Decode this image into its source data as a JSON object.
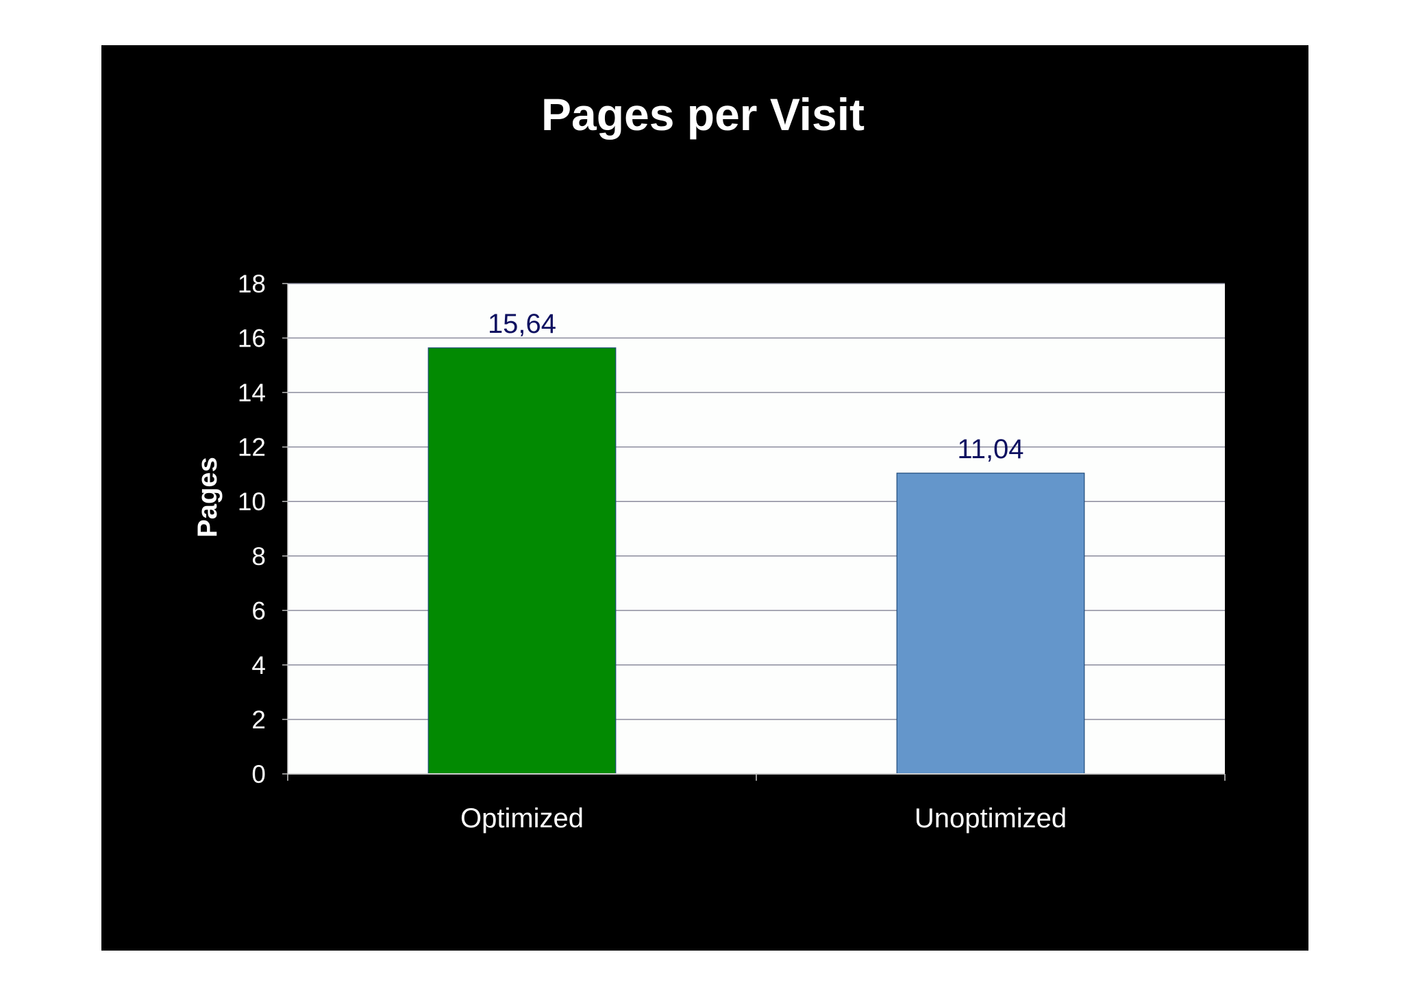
{
  "chart_data": {
    "type": "bar",
    "title": "Pages per Visit",
    "ylabel": "Pages",
    "xlabel": "",
    "categories": [
      "Optimized",
      "Unoptimized"
    ],
    "values": [
      15.64,
      11.04
    ],
    "data_labels": [
      "15,64",
      "11,04"
    ],
    "bar_colors": [
      "#028a02",
      "#6496cb"
    ],
    "ylim": [
      0,
      18
    ],
    "yticks": [
      "0",
      "2",
      "4",
      "6",
      "8",
      "10",
      "12",
      "14",
      "16",
      "18"
    ],
    "grid": true,
    "legend": "none",
    "colors": {
      "background": "#000000",
      "plot_area": "#fdfefd",
      "gridline": "#8a8a9c",
      "data_label": "#0d1060",
      "text": "#ffffff"
    }
  }
}
